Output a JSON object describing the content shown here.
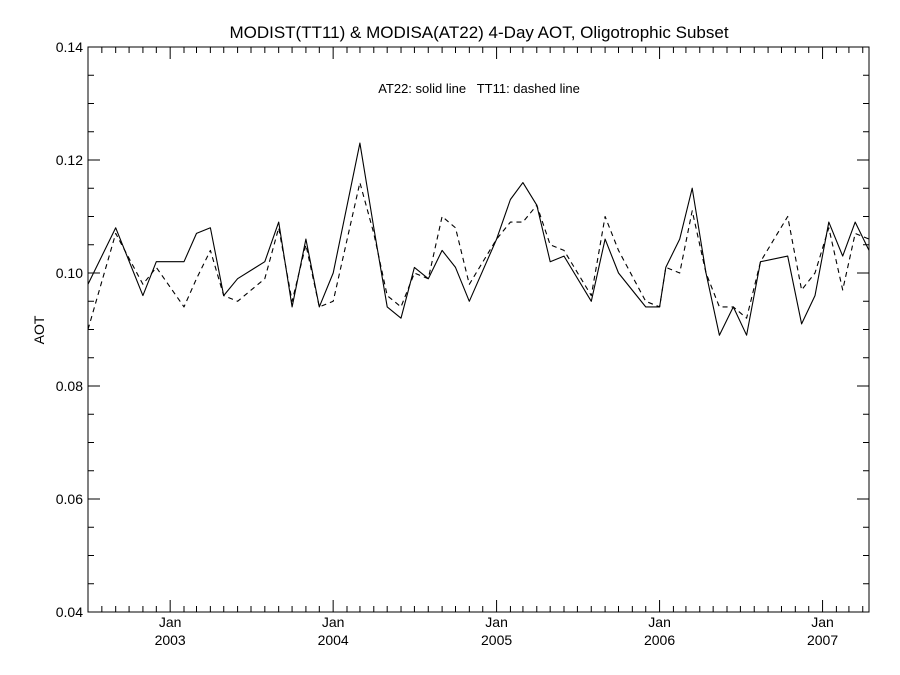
{
  "chart_data": {
    "type": "line",
    "title": "MODIST(TT11) & MODISA(AT22) 4-Day AOT, Oligotrophic Subset",
    "annotation": "AT22: solid line   TT11: dashed line",
    "ylabel": "AOT",
    "xlabel": "",
    "ylim": [
      0.04,
      0.14
    ],
    "xlim": [
      "2002-07-01",
      "2007-04-15"
    ],
    "y_ticks": [
      {
        "value": 0.04,
        "label": "0.04"
      },
      {
        "value": 0.06,
        "label": "0.06"
      },
      {
        "value": 0.08,
        "label": "0.08"
      },
      {
        "value": 0.1,
        "label": "0.10"
      },
      {
        "value": 0.12,
        "label": "0.12"
      },
      {
        "value": 0.14,
        "label": "0.14"
      }
    ],
    "x_ticks": [
      {
        "date": "2003-01-01",
        "label": "Jan",
        "sublabel": "2003"
      },
      {
        "date": "2004-01-01",
        "label": "Jan",
        "sublabel": "2004"
      },
      {
        "date": "2005-01-01",
        "label": "Jan",
        "sublabel": "2005"
      },
      {
        "date": "2006-01-01",
        "label": "Jan",
        "sublabel": "2006"
      },
      {
        "date": "2007-01-01",
        "label": "Jan",
        "sublabel": "2007"
      }
    ],
    "grid": false,
    "series": [
      {
        "name": "AT22",
        "style": "solid",
        "color": "#000000",
        "x": [
          "2002-07-01",
          "2002-09-01",
          "2002-11-01",
          "2002-12-01",
          "2003-02-01",
          "2003-03-01",
          "2003-04-01",
          "2003-05-01",
          "2003-06-01",
          "2003-08-01",
          "2003-09-01",
          "2003-10-01",
          "2003-11-01",
          "2003-12-01",
          "2004-01-01",
          "2004-03-01",
          "2004-04-01",
          "2004-05-01",
          "2004-06-01",
          "2004-07-01",
          "2004-08-01",
          "2004-09-01",
          "2004-10-01",
          "2004-11-01",
          "2005-01-01",
          "2005-02-01",
          "2005-03-01",
          "2005-04-01",
          "2005-05-01",
          "2005-06-01",
          "2005-08-01",
          "2005-09-01",
          "2005-10-01",
          "2005-12-01",
          "2006-01-01",
          "2006-01-15",
          "2006-02-15",
          "2006-03-15",
          "2006-04-15",
          "2006-05-15",
          "2006-06-15",
          "2006-07-15",
          "2006-08-15",
          "2006-10-15",
          "2006-11-15",
          "2006-12-15",
          "2007-01-15",
          "2007-02-15",
          "2007-03-15",
          "2007-04-15"
        ],
        "values": [
          0.098,
          0.108,
          0.096,
          0.102,
          0.102,
          0.107,
          0.108,
          0.096,
          0.099,
          0.102,
          0.109,
          0.094,
          0.106,
          0.094,
          0.1,
          0.123,
          0.108,
          0.094,
          0.092,
          0.101,
          0.099,
          0.104,
          0.101,
          0.095,
          0.106,
          0.113,
          0.116,
          0.112,
          0.102,
          0.103,
          0.095,
          0.106,
          0.1,
          0.094,
          0.094,
          0.101,
          0.106,
          0.115,
          0.1,
          0.089,
          0.094,
          0.089,
          0.102,
          0.103,
          0.091,
          0.096,
          0.109,
          0.103,
          0.109,
          0.104
        ]
      },
      {
        "name": "TT11",
        "style": "dashed",
        "color": "#000000",
        "x": [
          "2002-07-01",
          "2002-09-01",
          "2002-11-01",
          "2002-12-01",
          "2003-02-01",
          "2003-03-01",
          "2003-04-01",
          "2003-05-01",
          "2003-06-01",
          "2003-08-01",
          "2003-09-01",
          "2003-10-01",
          "2003-11-01",
          "2003-12-01",
          "2004-01-01",
          "2004-03-01",
          "2004-04-01",
          "2004-05-01",
          "2004-06-01",
          "2004-07-01",
          "2004-08-01",
          "2004-09-01",
          "2004-10-01",
          "2004-11-01",
          "2005-01-01",
          "2005-02-01",
          "2005-03-01",
          "2005-04-01",
          "2005-05-01",
          "2005-06-01",
          "2005-08-01",
          "2005-09-01",
          "2005-10-01",
          "2005-12-01",
          "2006-01-01",
          "2006-01-15",
          "2006-02-15",
          "2006-03-15",
          "2006-04-15",
          "2006-05-15",
          "2006-06-15",
          "2006-07-15",
          "2006-08-15",
          "2006-10-15",
          "2006-11-15",
          "2006-12-15",
          "2007-01-15",
          "2007-02-15",
          "2007-03-15",
          "2007-04-15"
        ],
        "values": [
          0.09,
          0.107,
          0.098,
          0.101,
          0.094,
          0.099,
          0.104,
          0.096,
          0.095,
          0.099,
          0.108,
          0.095,
          0.105,
          0.094,
          0.095,
          0.116,
          0.107,
          0.096,
          0.094,
          0.1,
          0.099,
          0.11,
          0.108,
          0.098,
          0.106,
          0.109,
          0.109,
          0.112,
          0.105,
          0.104,
          0.096,
          0.11,
          0.104,
          0.095,
          0.094,
          0.101,
          0.1,
          0.111,
          0.1,
          0.094,
          0.094,
          0.092,
          0.102,
          0.11,
          0.097,
          0.1,
          0.108,
          0.097,
          0.107,
          0.106
        ]
      }
    ]
  }
}
